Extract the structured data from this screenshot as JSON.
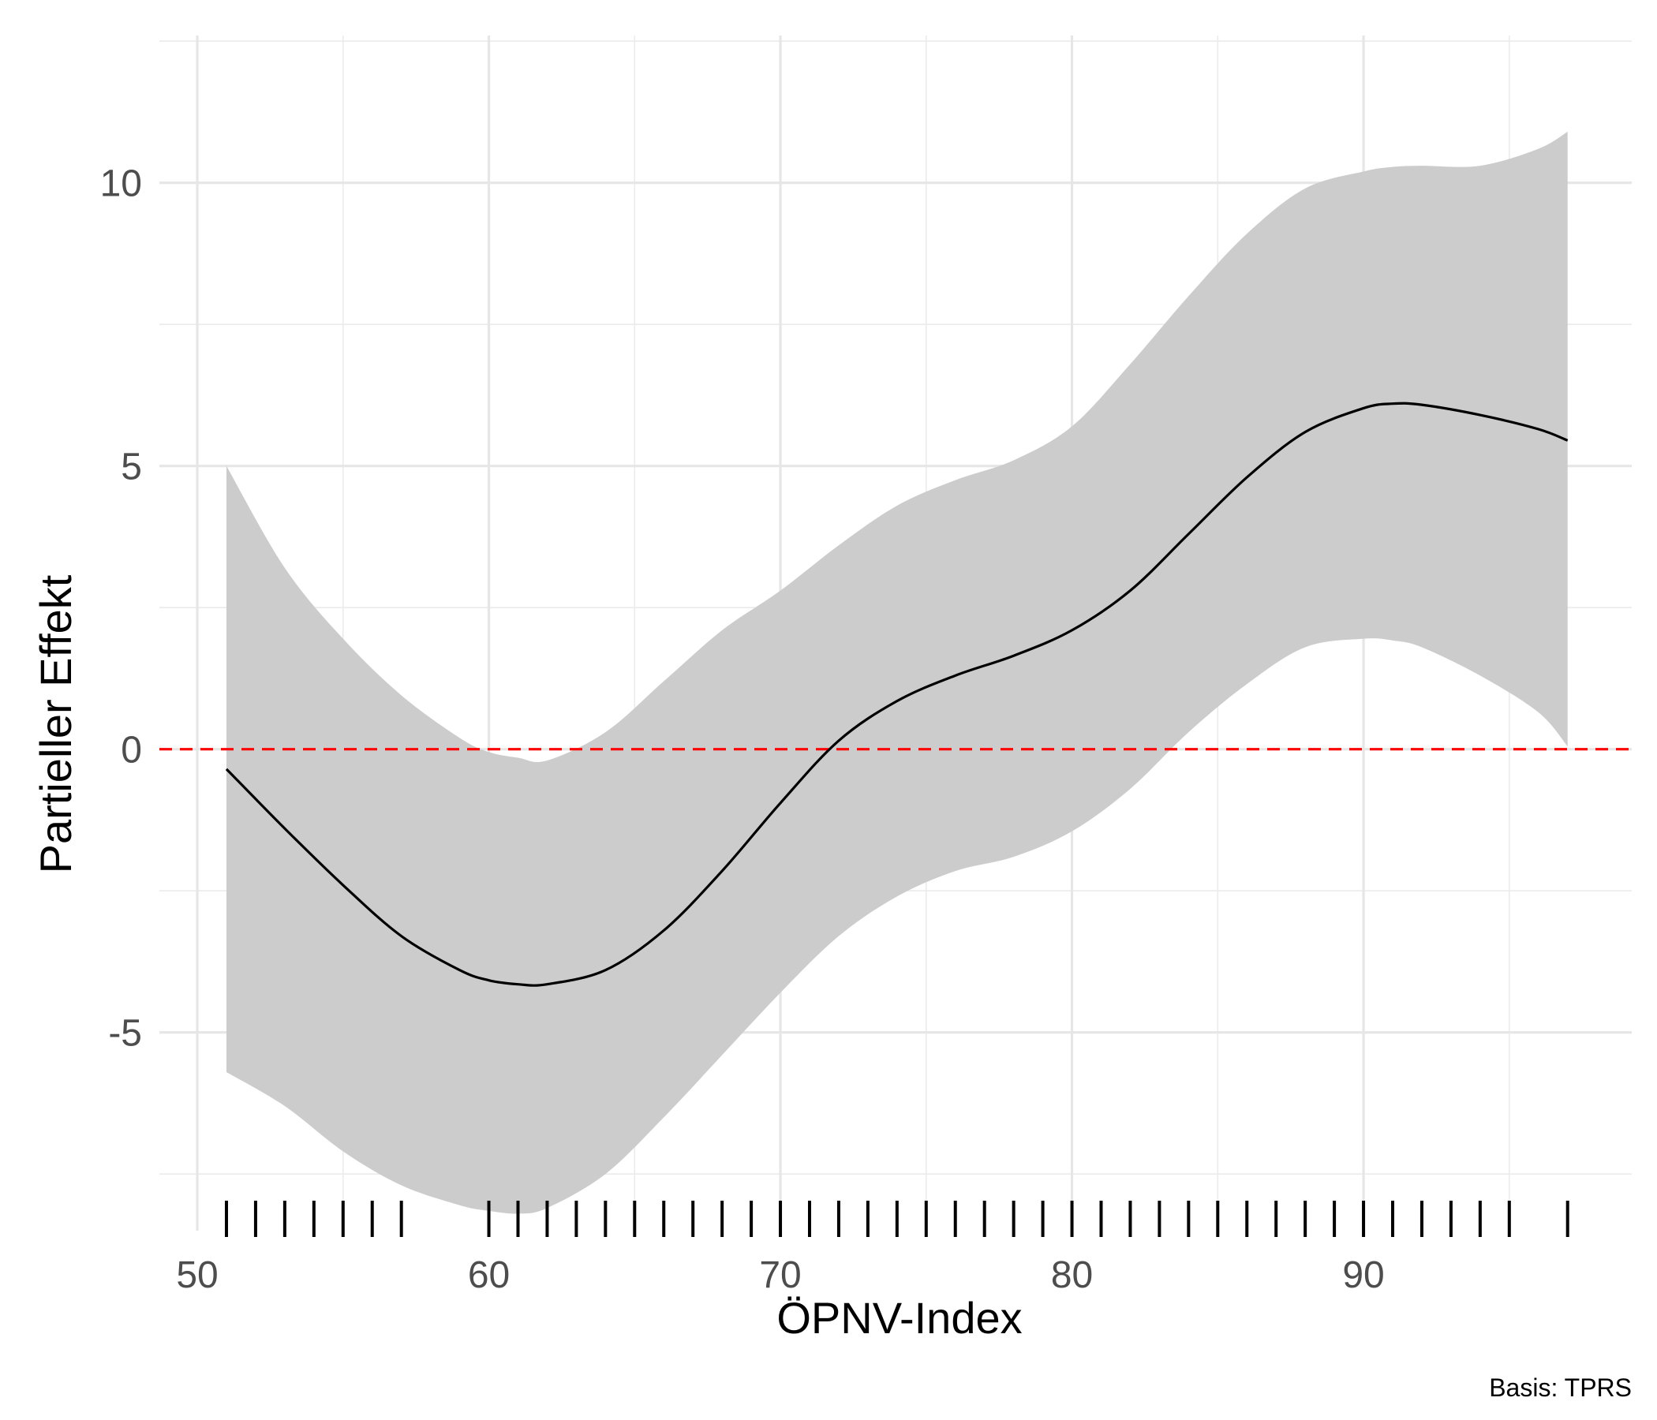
{
  "chart_data": {
    "type": "line",
    "title": "",
    "xlabel": "ÖPNV-Index",
    "ylabel": "Partieller Effekt",
    "caption": "Basis: TPRS",
    "xlim": [
      48.7,
      99.2
    ],
    "ylim": [
      -8.5,
      12.6
    ],
    "x_ticks": [
      50,
      60,
      70,
      80,
      90
    ],
    "x_tick_labels": [
      "50",
      "60",
      "70",
      "80",
      "90"
    ],
    "y_ticks": [
      -5,
      0,
      5,
      10
    ],
    "y_tick_labels": [
      "-5",
      "0",
      "5",
      "10"
    ],
    "grid": true,
    "reference_line": {
      "y": 0,
      "style": "dashed",
      "color": "#ff0000"
    },
    "series": [
      {
        "type": "line",
        "color": "#000000",
        "x": [
          51,
          53,
          55,
          57,
          59,
          60,
          61,
          62,
          64,
          66,
          68,
          70,
          72,
          74,
          76,
          78,
          80,
          82,
          84,
          86,
          88,
          90,
          91,
          92,
          94,
          96,
          97
        ],
        "y": [
          -0.35,
          -1.4,
          -2.4,
          -3.3,
          -3.9,
          -4.08,
          -4.15,
          -4.15,
          -3.9,
          -3.2,
          -2.15,
          -0.95,
          0.15,
          0.85,
          1.3,
          1.65,
          2.1,
          2.8,
          3.8,
          4.8,
          5.6,
          6.02,
          6.1,
          6.08,
          5.9,
          5.65,
          5.45
        ]
      },
      {
        "type": "area",
        "name": "",
        "color": "#cccccc",
        "x": [
          51,
          53,
          55,
          57,
          59,
          60,
          61,
          62,
          64,
          66,
          68,
          70,
          72,
          74,
          76,
          78,
          80,
          82,
          84,
          86,
          88,
          90,
          91,
          92,
          94,
          96,
          97
        ],
        "y_upper": [
          5.0,
          3.2,
          1.95,
          0.95,
          0.2,
          -0.05,
          -0.15,
          -0.2,
          0.3,
          1.2,
          2.1,
          2.8,
          3.6,
          4.3,
          4.75,
          5.1,
          5.7,
          6.8,
          8.0,
          9.1,
          9.9,
          10.2,
          10.28,
          10.3,
          10.3,
          10.6,
          10.9
        ],
        "y_lower": [
          -5.7,
          -6.3,
          -7.1,
          -7.7,
          -8.05,
          -8.15,
          -8.2,
          -8.1,
          -7.5,
          -6.5,
          -5.4,
          -4.3,
          -3.3,
          -2.6,
          -2.15,
          -1.9,
          -1.45,
          -0.7,
          0.3,
          1.15,
          1.8,
          1.95,
          1.92,
          1.8,
          1.3,
          0.65,
          0.05
        ]
      }
    ],
    "rug_x": [
      51,
      52,
      53,
      54,
      55,
      56,
      57,
      60,
      61,
      62,
      63,
      64,
      65,
      66,
      67,
      68,
      69,
      70,
      71,
      72,
      73,
      74,
      75,
      76,
      77,
      78,
      79,
      80,
      81,
      82,
      83,
      84,
      85,
      86,
      87,
      88,
      89,
      90,
      91,
      92,
      93,
      94,
      95,
      97
    ]
  }
}
